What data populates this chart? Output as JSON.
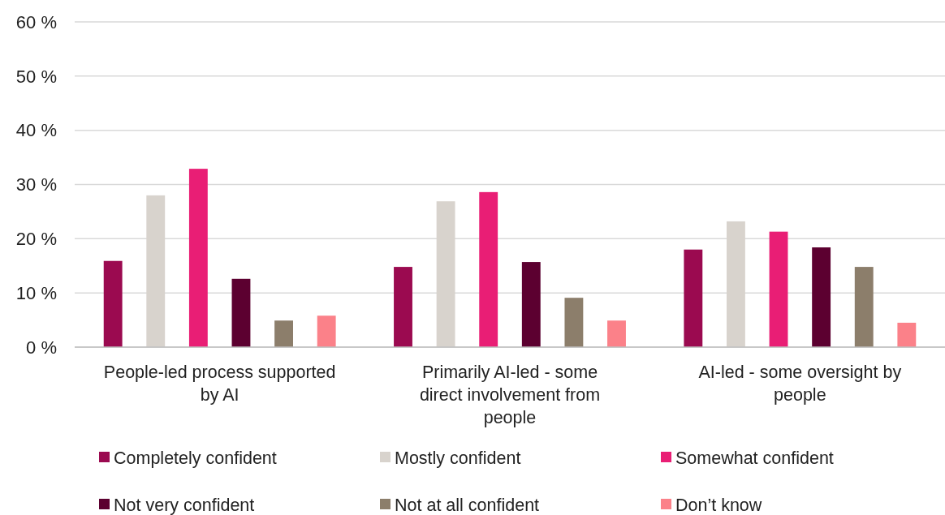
{
  "chart_data": {
    "type": "bar",
    "categories": [
      "People-led process supported by AI",
      "Primarily AI-led - some direct involvement from people",
      "AI-led - some oversight by people"
    ],
    "series": [
      {
        "name": "Completely confident",
        "color": "#9b0a50",
        "values": [
          15.9,
          14.8,
          18.0
        ]
      },
      {
        "name": "Mostly confident",
        "color": "#d8d3cd",
        "values": [
          28.0,
          26.9,
          23.2
        ]
      },
      {
        "name": "Somewhat confident",
        "color": "#e91e75",
        "values": [
          32.9,
          28.6,
          21.3
        ]
      },
      {
        "name": "Not very confident",
        "color": "#5c0030",
        "values": [
          12.6,
          15.7,
          18.4
        ]
      },
      {
        "name": "Not at all confident",
        "color": "#8c7e6b",
        "values": [
          4.9,
          9.1,
          14.8
        ]
      },
      {
        "name": "Don’t know",
        "color": "#fb8189",
        "values": [
          5.8,
          4.9,
          4.5
        ]
      }
    ],
    "ylim": [
      0,
      60
    ],
    "yticks": [
      {
        "value": 0,
        "label": "0 %"
      },
      {
        "value": 10,
        "label": "10 %"
      },
      {
        "value": 20,
        "label": "20 %"
      },
      {
        "value": 30,
        "label": "30 %"
      },
      {
        "value": 40,
        "label": "40 %"
      },
      {
        "value": 50,
        "label": "50 %"
      },
      {
        "value": 60,
        "label": "60 %"
      }
    ],
    "grid": "y",
    "legend": "bottom"
  }
}
